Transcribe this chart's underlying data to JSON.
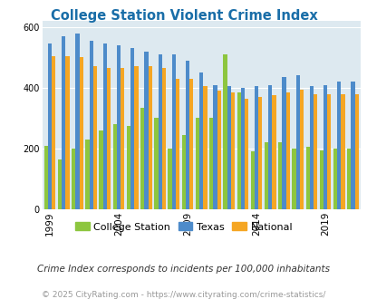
{
  "title": "College Station Violent Crime Index",
  "subtitle": "Crime Index corresponds to incidents per 100,000 inhabitants",
  "footer": "© 2025 CityRating.com - https://www.cityrating.com/crime-statistics/",
  "years": [
    1999,
    2000,
    2001,
    2002,
    2003,
    2004,
    2005,
    2006,
    2007,
    2008,
    2009,
    2010,
    2011,
    2012,
    2013,
    2014,
    2015,
    2016,
    2017,
    2018,
    2019,
    2020,
    2021
  ],
  "college_station": [
    210,
    165,
    200,
    230,
    260,
    280,
    275,
    335,
    300,
    200,
    245,
    300,
    300,
    510,
    385,
    190,
    220,
    220,
    200,
    205,
    195,
    200,
    200
  ],
  "texas": [
    545,
    570,
    580,
    555,
    545,
    540,
    530,
    520,
    510,
    510,
    490,
    450,
    410,
    405,
    400,
    405,
    410,
    435,
    440,
    405,
    410,
    420,
    420
  ],
  "national": [
    505,
    505,
    500,
    470,
    465,
    465,
    470,
    470,
    465,
    430,
    430,
    405,
    390,
    385,
    365,
    370,
    375,
    385,
    395,
    380,
    380,
    380,
    380
  ],
  "bar_colors": {
    "college_station": "#8DC63F",
    "texas": "#4D8BCA",
    "national": "#F5A623"
  },
  "bg_color": "#DDE9F0",
  "ylim": [
    0,
    620
  ],
  "yticks": [
    0,
    200,
    400,
    600
  ],
  "tick_years": [
    1999,
    2004,
    2009,
    2014,
    2019
  ],
  "legend_labels": [
    "College Station",
    "Texas",
    "National"
  ],
  "title_color": "#1a6ea8",
  "subtitle_color": "#333333",
  "footer_color": "#999999"
}
